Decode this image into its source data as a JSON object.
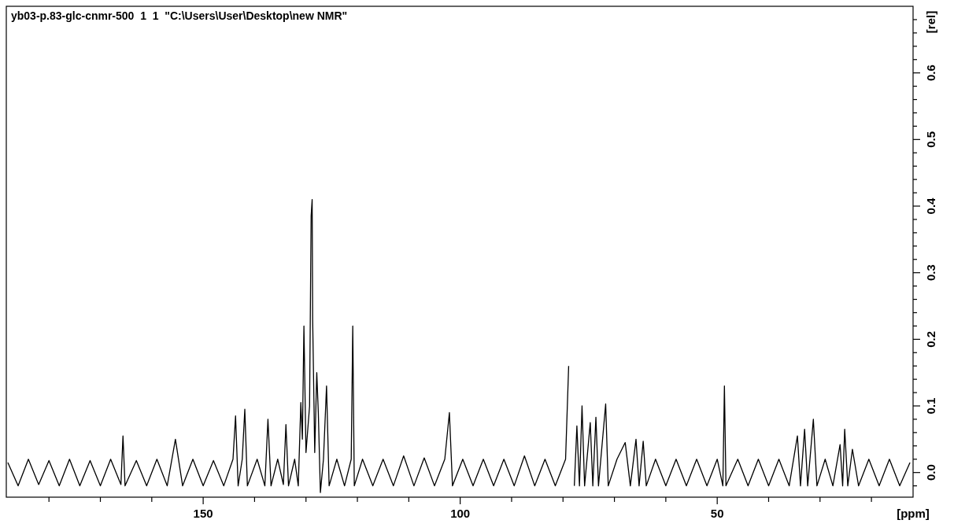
{
  "chart_data": {
    "type": "line",
    "title": "yb03-p.83-glc-cnmr-500  1  1  \"C:\\Users\\User\\Desktop\\new NMR\"",
    "xlabel": "[ppm]",
    "ylabel": "[rel]",
    "xlim": [
      188.3,
      11.9
    ],
    "ylim": [
      -0.037,
      0.7
    ],
    "xticks": [
      {
        "value": 180,
        "label": null
      },
      {
        "value": 170,
        "label": null
      },
      {
        "value": 160,
        "label": null
      },
      {
        "value": 150,
        "label": "150"
      },
      {
        "value": 140,
        "label": null
      },
      {
        "value": 130,
        "label": null
      },
      {
        "value": 120,
        "label": null
      },
      {
        "value": 110,
        "label": null
      },
      {
        "value": 100,
        "label": "100"
      },
      {
        "value": 90,
        "label": null
      },
      {
        "value": 80,
        "label": null
      },
      {
        "value": 70,
        "label": null
      },
      {
        "value": 60,
        "label": null
      },
      {
        "value": 50,
        "label": "50"
      },
      {
        "value": 40,
        "label": null
      },
      {
        "value": 30,
        "label": null
      },
      {
        "value": 20,
        "label": null
      }
    ],
    "yticks": [
      {
        "value": -0.02,
        "label": null
      },
      {
        "value": 0,
        "label": "0.0"
      },
      {
        "value": 0.02,
        "label": null
      },
      {
        "value": 0.04,
        "label": null
      },
      {
        "value": 0.06,
        "label": null
      },
      {
        "value": 0.08,
        "label": null
      },
      {
        "value": 0.1,
        "label": "0.1"
      },
      {
        "value": 0.12,
        "label": null
      },
      {
        "value": 0.14,
        "label": null
      },
      {
        "value": 0.16,
        "label": null
      },
      {
        "value": 0.18,
        "label": null
      },
      {
        "value": 0.2,
        "label": "0.2"
      },
      {
        "value": 0.22,
        "label": null
      },
      {
        "value": 0.24,
        "label": null
      },
      {
        "value": 0.26,
        "label": null
      },
      {
        "value": 0.28,
        "label": null
      },
      {
        "value": 0.3,
        "label": "0.3"
      },
      {
        "value": 0.32,
        "label": null
      },
      {
        "value": 0.34,
        "label": null
      },
      {
        "value": 0.36,
        "label": null
      },
      {
        "value": 0.38,
        "label": null
      },
      {
        "value": 0.4,
        "label": "0.4"
      },
      {
        "value": 0.42,
        "label": null
      },
      {
        "value": 0.44,
        "label": null
      },
      {
        "value": 0.46,
        "label": null
      },
      {
        "value": 0.48,
        "label": null
      },
      {
        "value": 0.5,
        "label": "0.5"
      },
      {
        "value": 0.52,
        "label": null
      },
      {
        "value": 0.54,
        "label": null
      },
      {
        "value": 0.56,
        "label": null
      },
      {
        "value": 0.58,
        "label": null
      },
      {
        "value": 0.6,
        "label": "0.6"
      },
      {
        "value": 0.62,
        "label": null
      },
      {
        "value": 0.64,
        "label": null
      },
      {
        "value": 0.66,
        "label": null
      },
      {
        "value": 0.68,
        "label": null
      }
    ],
    "x": [
      188,
      186,
      184,
      182,
      180,
      178,
      176,
      174,
      172,
      170,
      168,
      166,
      165.6,
      165.2,
      163,
      161,
      159,
      157,
      155.4,
      154,
      152,
      150,
      148,
      146,
      144.2,
      143.7,
      143.2,
      142.4,
      141.9,
      141.4,
      139.5,
      138,
      137.4,
      136.8,
      135.5,
      134.4,
      133.9,
      133.4,
      132.2,
      131.5,
      131.0,
      130.7,
      130.4,
      130.0,
      129.3,
      129.0,
      128.8,
      128.7,
      128.3,
      127.9,
      127.6,
      127.2,
      126.6,
      126.0,
      125.5,
      124,
      122.5,
      121.2,
      120.9,
      120.6,
      119,
      117,
      115,
      113,
      111,
      109,
      107,
      105,
      103,
      102.1,
      101.5,
      99.5,
      97.5,
      95.5,
      93.5,
      91.5,
      89.5,
      87.5,
      85.5,
      83.5,
      81.5,
      79.5,
      78.9,
      78.6,
      78.0,
      77.8,
      77.3,
      76.8,
      76.3,
      75.8,
      74.7,
      74.2,
      73.6,
      73.1,
      71.7,
      71.2,
      69.5,
      67.9,
      66.9,
      65.8,
      65.2,
      64.4,
      63.8,
      62,
      60,
      58,
      56,
      54,
      52,
      50,
      48.9,
      48.6,
      48.3,
      46,
      44,
      42,
      40,
      38,
      36,
      34.4,
      33.8,
      33.0,
      32.4,
      31.3,
      30.6,
      29,
      27.5,
      26.1,
      25.6,
      25.2,
      24.6,
      23.7,
      22.5,
      20.5,
      18.5,
      16.5,
      14.5,
      12.5
    ],
    "series": [
      {
        "color": "#000000",
        "values": [
          0.015,
          -0.02,
          0.02,
          -0.018,
          0.018,
          -0.02,
          0.02,
          -0.02,
          0.018,
          -0.02,
          0.02,
          -0.018,
          0.055,
          -0.02,
          0.018,
          -0.02,
          0.02,
          -0.02,
          0.05,
          -0.02,
          0.02,
          -0.02,
          0.018,
          -0.02,
          0.02,
          0.085,
          -0.02,
          0.02,
          0.095,
          -0.02,
          0.02,
          -0.02,
          0.08,
          -0.02,
          0.02,
          -0.018,
          0.072,
          -0.02,
          0.02,
          -0.02,
          0.105,
          0.05,
          0.22,
          0.03,
          0.1,
          0.385,
          0.41,
          0.23,
          0.03,
          0.15,
          0.09,
          -0.03,
          0.02,
          0.13,
          -0.02,
          0.02,
          -0.02,
          0.02,
          0.22,
          -0.02,
          0.02,
          -0.02,
          0.02,
          -0.02,
          0.025,
          -0.02,
          0.022,
          -0.02,
          0.02,
          0.09,
          -0.02,
          0.02,
          -0.02,
          0.02,
          -0.02,
          0.02,
          -0.02,
          0.025,
          -0.02,
          0.02,
          -0.02,
          0.02,
          0.16,
          null,
          null,
          -0.02,
          0.07,
          -0.02,
          0.1,
          -0.02,
          0.075,
          -0.02,
          0.083,
          -0.02,
          0.103,
          -0.02,
          0.02,
          0.045,
          -0.02,
          0.05,
          -0.02,
          0.047,
          -0.02,
          0.02,
          -0.02,
          0.02,
          -0.02,
          0.02,
          -0.02,
          0.02,
          -0.02,
          0.13,
          -0.02,
          0.02,
          -0.02,
          0.02,
          -0.02,
          0.02,
          -0.02,
          0.055,
          -0.02,
          0.065,
          -0.02,
          0.08,
          -0.02,
          0.02,
          -0.02,
          0.042,
          -0.02,
          0.065,
          -0.02,
          0.035,
          -0.02,
          0.02,
          -0.02,
          0.02,
          -0.02,
          0.015
        ]
      }
    ]
  }
}
